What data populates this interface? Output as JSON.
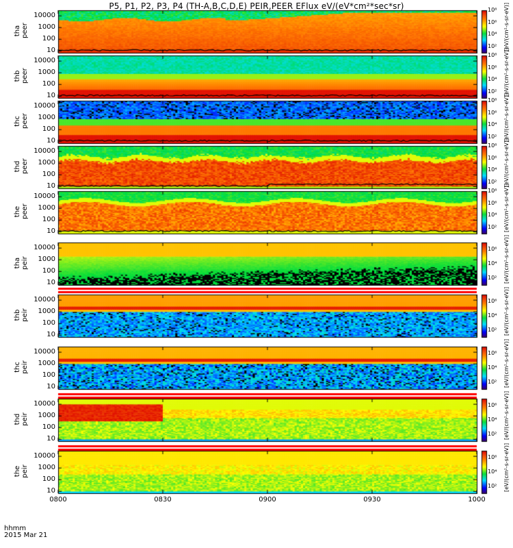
{
  "chart_data": {
    "type": "heatmap",
    "title": "P5, P1, P2, P3, P4 (TH-A,B,C,D,E) PEIR,PEER EFlux eV/(eV*cm²*sec*sr)",
    "x_tick_labels": [
      "0800",
      "0830",
      "0900",
      "0930",
      "1000"
    ],
    "x_range_hhmm": [
      "0800",
      "1000"
    ],
    "x_axis_label": "hhmm",
    "date_label": "2015 Mar 21",
    "y_tick_labels": [
      "10",
      "100",
      "1000",
      "10000"
    ],
    "y_range_eV": [
      7,
      30000
    ],
    "y_scale": "log",
    "colorbar_label": "[eV/(cm²-s-sr-eV)]",
    "colorbar_tick_labels": [
      "10²",
      "10⁴",
      "10⁶",
      "10⁸"
    ],
    "panels": [
      {
        "probe": "tha",
        "species": "peer",
        "color_range_exp": [
          1,
          8
        ]
      },
      {
        "probe": "thb",
        "species": "peer",
        "color_range_exp": [
          1,
          8
        ]
      },
      {
        "probe": "thc",
        "species": "peer",
        "color_range_exp": [
          1,
          8
        ]
      },
      {
        "probe": "thd",
        "species": "peer",
        "color_range_exp": [
          1,
          8
        ]
      },
      {
        "probe": "the",
        "species": "peer",
        "color_range_exp": [
          1,
          8
        ]
      },
      {
        "probe": "tha",
        "species": "peir",
        "color_range_exp": [
          1,
          7
        ]
      },
      {
        "probe": "thb",
        "species": "peir",
        "color_range_exp": [
          1,
          7
        ]
      },
      {
        "probe": "thc",
        "species": "peir",
        "color_range_exp": [
          1,
          7
        ]
      },
      {
        "probe": "thd",
        "species": "peir",
        "color_range_exp": [
          1,
          7
        ]
      },
      {
        "probe": "the",
        "species": "peir",
        "color_range_exp": [
          1,
          7
        ]
      }
    ]
  }
}
